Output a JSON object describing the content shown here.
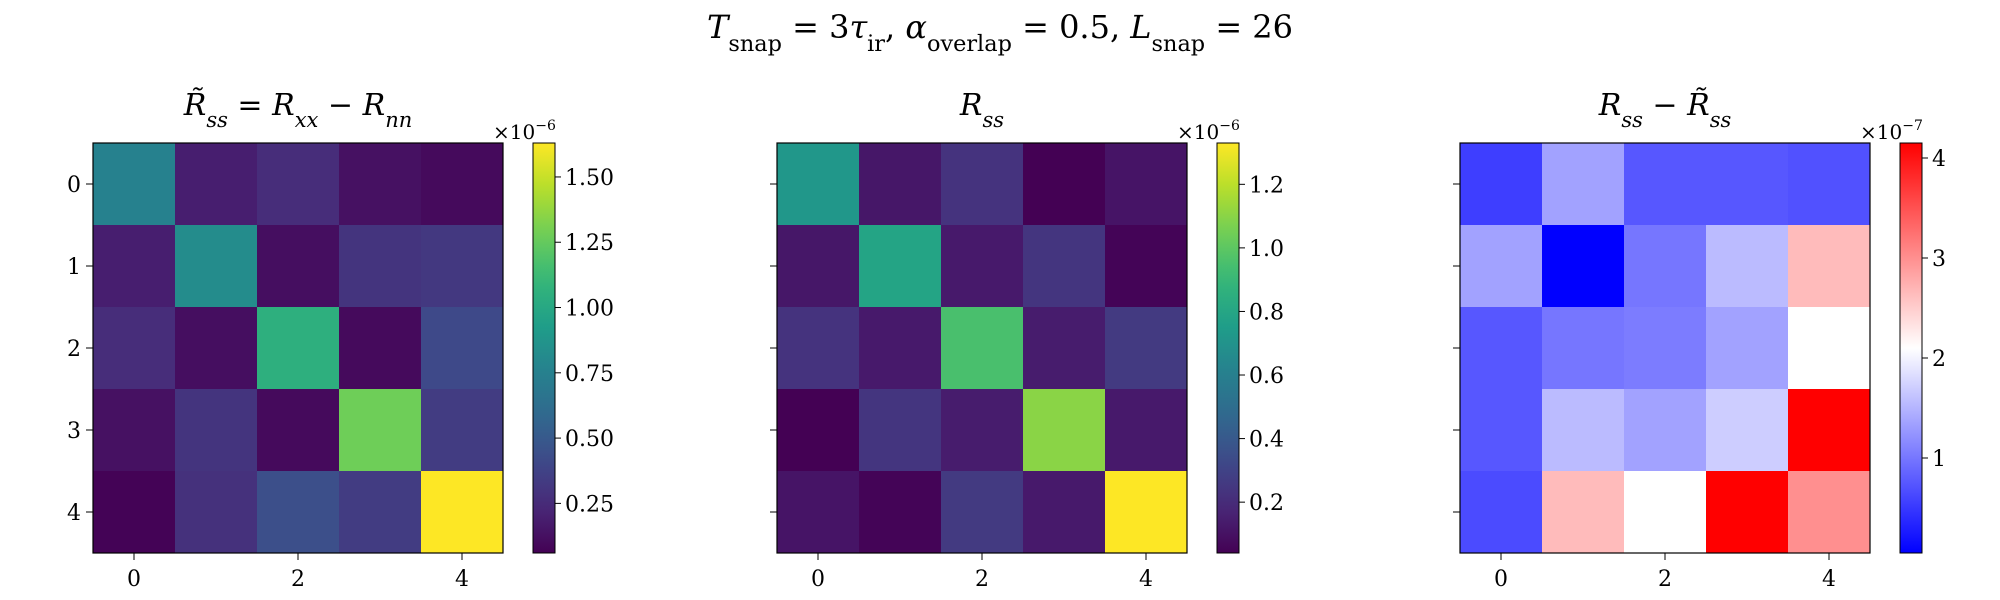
{
  "figure": {
    "suptitle": {
      "parts": [
        {
          "t": "T",
          "i": true
        },
        {
          "t": "snap",
          "sub": true
        },
        {
          "t": " = 3"
        },
        {
          "t": "τ",
          "i": true
        },
        {
          "t": "ir",
          "sub": true
        },
        {
          "t": ",    "
        },
        {
          "t": "α",
          "i": true
        },
        {
          "t": "overlap",
          "sub": true
        },
        {
          "t": " = 0.5,    "
        },
        {
          "t": "L",
          "i": true
        },
        {
          "t": "snap",
          "sub": true
        },
        {
          "t": " = 26"
        }
      ]
    }
  },
  "chart_data": [
    {
      "type": "heatmap",
      "title_parts": [
        {
          "t": "R̃",
          "i": true
        },
        {
          "t": "ss",
          "sub": true,
          "i": true
        },
        {
          "t": " = "
        },
        {
          "t": "R",
          "i": true
        },
        {
          "t": "xx",
          "sub": true,
          "i": true
        },
        {
          "t": " − "
        },
        {
          "t": "R",
          "i": true
        },
        {
          "t": "nn",
          "sub": true,
          "i": true
        }
      ],
      "colormap": "viridis",
      "vmin": 0.06,
      "vmax": 1.63,
      "matrix": [
        [
          0.75,
          0.19,
          0.26,
          0.13,
          0.1
        ],
        [
          0.19,
          0.82,
          0.12,
          0.3,
          0.32
        ],
        [
          0.26,
          0.12,
          1.05,
          0.1,
          0.41
        ],
        [
          0.13,
          0.3,
          0.1,
          1.28,
          0.34
        ],
        [
          0.07,
          0.28,
          0.44,
          0.34,
          1.63
        ]
      ],
      "x_ticks": [
        "0",
        "2",
        "4"
      ],
      "y_ticks": [
        "0",
        "1",
        "2",
        "3",
        "4"
      ],
      "colorbar_ticks": [
        "0.25",
        "0.50",
        "0.75",
        "1.00",
        "1.25",
        "1.50"
      ],
      "colorbar_tick_values": [
        0.25,
        0.5,
        0.75,
        1.0,
        1.25,
        1.5
      ],
      "colorbar_exponent": "−6",
      "show_y_tick_labels": true
    },
    {
      "type": "heatmap",
      "title_parts": [
        {
          "t": "R",
          "i": true
        },
        {
          "t": "ss",
          "sub": true,
          "i": true
        }
      ],
      "colormap": "viridis",
      "vmin": 0.04,
      "vmax": 1.33,
      "matrix": [
        [
          0.72,
          0.12,
          0.23,
          0.04,
          0.11
        ],
        [
          0.12,
          0.79,
          0.13,
          0.24,
          0.05
        ],
        [
          0.23,
          0.13,
          0.95,
          0.14,
          0.26
        ],
        [
          0.04,
          0.24,
          0.14,
          1.1,
          0.13
        ],
        [
          0.11,
          0.05,
          0.26,
          0.13,
          1.33
        ]
      ],
      "x_ticks": [
        "0",
        "2",
        "4"
      ],
      "y_ticks": [
        "0",
        "1",
        "2",
        "3",
        "4"
      ],
      "colorbar_ticks": [
        "0.2",
        "0.4",
        "0.6",
        "0.8",
        "1.0",
        "1.2"
      ],
      "colorbar_tick_values": [
        0.2,
        0.4,
        0.6,
        0.8,
        1.0,
        1.2
      ],
      "colorbar_exponent": "−6",
      "show_y_tick_labels": false
    },
    {
      "type": "heatmap",
      "title_parts": [
        {
          "t": "R",
          "i": true
        },
        {
          "t": "ss",
          "sub": true,
          "i": true
        },
        {
          "t": " − "
        },
        {
          "t": "R̃",
          "i": true
        },
        {
          "t": "ss",
          "sub": true,
          "i": true
        }
      ],
      "colormap": "bwr",
      "vmin": 0.05,
      "vmax": 4.15,
      "matrix": [
        [
          0.55,
          1.35,
          0.75,
          0.75,
          0.7
        ],
        [
          1.35,
          0.05,
          1.0,
          1.55,
          2.65
        ],
        [
          0.75,
          1.0,
          1.05,
          1.35,
          2.1
        ],
        [
          0.75,
          1.55,
          1.35,
          1.7,
          4.15
        ],
        [
          0.65,
          2.65,
          2.1,
          4.15,
          3.0
        ]
      ],
      "x_ticks": [
        "0",
        "2",
        "4"
      ],
      "y_ticks": [
        "0",
        "1",
        "2",
        "3",
        "4"
      ],
      "colorbar_ticks": [
        "1",
        "2",
        "3",
        "4"
      ],
      "colorbar_tick_values": [
        1,
        2,
        3,
        4
      ],
      "colorbar_exponent": "−7",
      "show_y_tick_labels": false
    }
  ]
}
